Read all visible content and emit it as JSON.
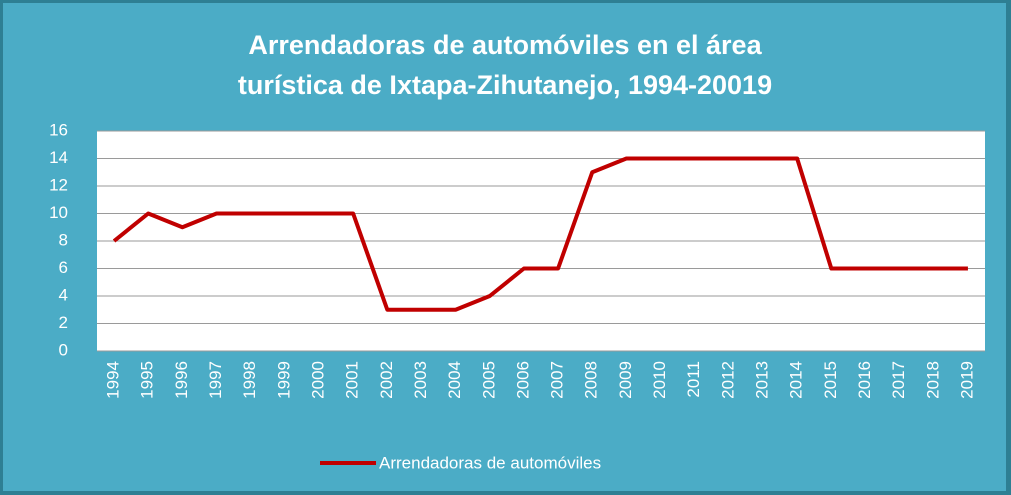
{
  "chart_data": {
    "type": "line",
    "title": [
      "Arrendadoras de automóviles en el área",
      "turística de Ixtapa-Zihutanejo, 1994-20019"
    ],
    "categories": [
      "1994",
      "1995",
      "1996",
      "1997",
      "1998",
      "1999",
      "2000",
      "2001",
      "2002",
      "2003",
      "2004",
      "2005",
      "2006",
      "2007",
      "2008",
      "2009",
      "2010",
      "2011",
      "2012",
      "2013",
      "2014",
      "2015",
      "2016",
      "2017",
      "2018",
      "2019"
    ],
    "series": [
      {
        "name": "Arrendadoras de automóviles",
        "color": "#c00000",
        "values": [
          8,
          10,
          9,
          10,
          10,
          10,
          10,
          10,
          3,
          3,
          3,
          4,
          6,
          6,
          13,
          14,
          14,
          14,
          14,
          14,
          14,
          6,
          6,
          6,
          6,
          6
        ]
      }
    ],
    "ylim": [
      0,
      16
    ],
    "yticks": [
      0,
      2,
      4,
      6,
      8,
      10,
      12,
      14,
      16
    ],
    "grid": true,
    "legend": "bottom"
  }
}
